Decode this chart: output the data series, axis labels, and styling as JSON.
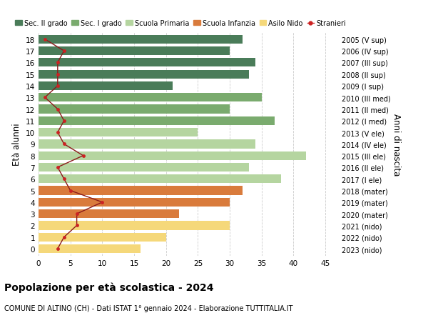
{
  "ages": [
    18,
    17,
    16,
    15,
    14,
    13,
    12,
    11,
    10,
    9,
    8,
    7,
    6,
    5,
    4,
    3,
    2,
    1,
    0
  ],
  "labels_right": [
    "2005 (V sup)",
    "2006 (IV sup)",
    "2007 (III sup)",
    "2008 (II sup)",
    "2009 (I sup)",
    "2010 (III med)",
    "2011 (II med)",
    "2012 (I med)",
    "2013 (V ele)",
    "2014 (IV ele)",
    "2015 (III ele)",
    "2016 (II ele)",
    "2017 (I ele)",
    "2018 (mater)",
    "2019 (mater)",
    "2020 (mater)",
    "2021 (nido)",
    "2022 (nido)",
    "2023 (nido)"
  ],
  "bar_values": [
    32,
    30,
    34,
    33,
    21,
    35,
    30,
    37,
    25,
    34,
    42,
    33,
    38,
    32,
    30,
    22,
    30,
    20,
    16
  ],
  "bar_colors": [
    "#4a7c59",
    "#4a7c59",
    "#4a7c59",
    "#4a7c59",
    "#4a7c59",
    "#7aab6e",
    "#7aab6e",
    "#7aab6e",
    "#b5d5a0",
    "#b5d5a0",
    "#b5d5a0",
    "#b5d5a0",
    "#b5d5a0",
    "#d97b3c",
    "#d97b3c",
    "#d97b3c",
    "#f5d87a",
    "#f5d87a",
    "#f5d87a"
  ],
  "stranieri_values": [
    1,
    4,
    3,
    3,
    3,
    1,
    3,
    4,
    3,
    4,
    7,
    3,
    4,
    5,
    10,
    6,
    6,
    4,
    3
  ],
  "legend_labels": [
    "Sec. II grado",
    "Sec. I grado",
    "Scuola Primaria",
    "Scuola Infanzia",
    "Asilo Nido",
    "Stranieri"
  ],
  "legend_colors": [
    "#4a7c59",
    "#7aab6e",
    "#b5d5a0",
    "#d97b3c",
    "#f5d87a",
    "#cc2222"
  ],
  "ylabel_left": "Età alunni",
  "ylabel_right": "Anni di nascita",
  "xlim_max": 47,
  "xticks": [
    0,
    5,
    10,
    15,
    20,
    25,
    30,
    35,
    40,
    45
  ],
  "title_bold": "Popolazione per età scolastica - 2024",
  "subtitle": "COMUNE DI ALTINO (CH) - Dati ISTAT 1° gennaio 2024 - Elaborazione TUTTITALIA.IT",
  "bg_color": "#ffffff",
  "bar_height": 0.75,
  "grid_color": "#cccccc",
  "stranieri_line_color": "#8b1a1a",
  "stranieri_dot_color": "#cc2222"
}
